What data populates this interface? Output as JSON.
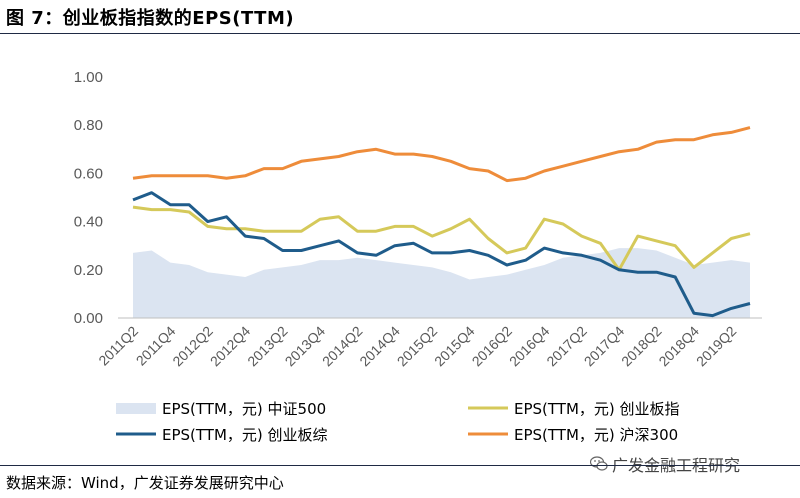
{
  "header": {
    "title": "图 7：创业板指指数的EPS(TTM)"
  },
  "footer": {
    "source": "数据来源：Wind，广发证券发展研究中心",
    "watermark": "广发金融工程研究"
  },
  "chart_data": {
    "type": "line",
    "title": "",
    "xlabel": "",
    "ylabel": "",
    "ylim": [
      0,
      1
    ],
    "yticks": [
      "0.00",
      "0.20",
      "0.40",
      "0.60",
      "0.80",
      "1.00"
    ],
    "grid": false,
    "legend_position": "bottom",
    "categories": [
      "2011Q2",
      "2011Q3",
      "2011Q4",
      "2012Q1",
      "2012Q2",
      "2012Q3",
      "2012Q4",
      "2013Q1",
      "2013Q2",
      "2013Q3",
      "2013Q4",
      "2014Q1",
      "2014Q2",
      "2014Q3",
      "2014Q4",
      "2015Q1",
      "2015Q2",
      "2015Q3",
      "2015Q4",
      "2016Q1",
      "2016Q2",
      "2016Q3",
      "2016Q4",
      "2017Q1",
      "2017Q2",
      "2017Q3",
      "2017Q4",
      "2018Q1",
      "2018Q2",
      "2018Q3",
      "2018Q4",
      "2019Q1",
      "2019Q2",
      "2019Q3"
    ],
    "xtick_labels": [
      "2011Q2",
      "2011Q4",
      "2012Q2",
      "2012Q4",
      "2013Q2",
      "2013Q4",
      "2014Q2",
      "2014Q4",
      "2015Q2",
      "2015Q4",
      "2016Q2",
      "2016Q4",
      "2017Q2",
      "2017Q4",
      "2018Q2",
      "2018Q4",
      "2019Q2"
    ],
    "series": [
      {
        "name": "EPS(TTM，元) 中证500",
        "kind": "area",
        "color": "#dbe4f1",
        "values": [
          0.27,
          0.28,
          0.23,
          0.22,
          0.19,
          0.18,
          0.17,
          0.2,
          0.21,
          0.22,
          0.24,
          0.24,
          0.25,
          0.24,
          0.23,
          0.22,
          0.21,
          0.19,
          0.16,
          0.17,
          0.18,
          0.2,
          0.22,
          0.25,
          0.26,
          0.27,
          0.29,
          0.29,
          0.28,
          0.25,
          0.22,
          0.23,
          0.24,
          0.23
        ]
      },
      {
        "name": "EPS(TTM，元) 创业板指",
        "kind": "line",
        "color": "#d5c95a",
        "values": [
          0.46,
          0.45,
          0.45,
          0.44,
          0.38,
          0.37,
          0.37,
          0.36,
          0.36,
          0.36,
          0.41,
          0.42,
          0.36,
          0.36,
          0.38,
          0.38,
          0.34,
          0.37,
          0.41,
          0.33,
          0.27,
          0.29,
          0.41,
          0.39,
          0.34,
          0.31,
          0.2,
          0.34,
          0.32,
          0.3,
          0.21,
          0.27,
          0.33,
          0.35
        ]
      },
      {
        "name": "EPS(TTM，元) 创业板综",
        "kind": "line",
        "color": "#1f5c8b",
        "values": [
          0.49,
          0.52,
          0.47,
          0.47,
          0.4,
          0.42,
          0.34,
          0.33,
          0.28,
          0.28,
          0.3,
          0.32,
          0.27,
          0.26,
          0.3,
          0.31,
          0.27,
          0.27,
          0.28,
          0.26,
          0.22,
          0.24,
          0.29,
          0.27,
          0.26,
          0.24,
          0.2,
          0.19,
          0.19,
          0.17,
          0.02,
          0.01,
          0.04,
          0.06
        ]
      },
      {
        "name": "EPS(TTM，元) 沪深300",
        "kind": "line",
        "color": "#ee8c3a",
        "values": [
          0.58,
          0.59,
          0.59,
          0.59,
          0.59,
          0.58,
          0.59,
          0.62,
          0.62,
          0.65,
          0.66,
          0.67,
          0.69,
          0.7,
          0.68,
          0.68,
          0.67,
          0.65,
          0.62,
          0.61,
          0.57,
          0.58,
          0.61,
          0.63,
          0.65,
          0.67,
          0.69,
          0.7,
          0.73,
          0.74,
          0.74,
          0.76,
          0.77,
          0.79
        ]
      }
    ]
  }
}
